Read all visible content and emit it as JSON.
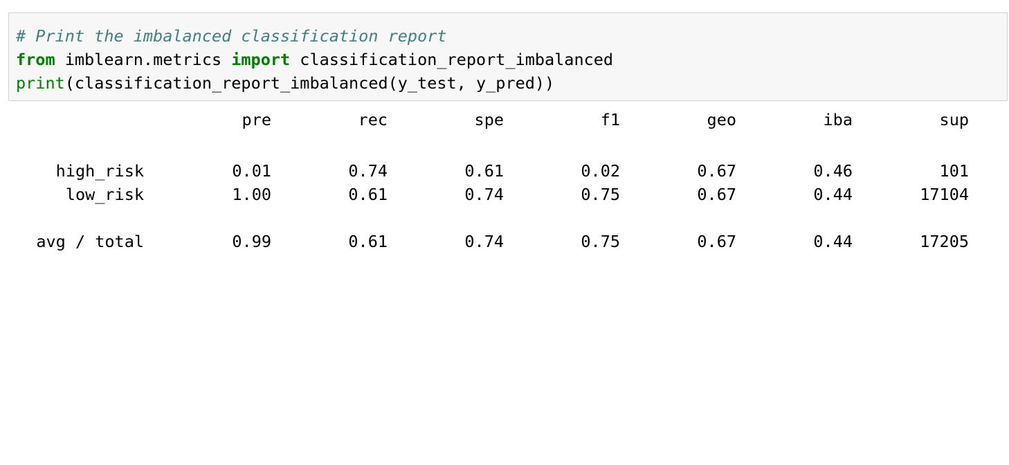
{
  "code": {
    "line1": "# Print the imbalanced classification report",
    "line2_kw_from": "from",
    "line2_module": " imblearn.metrics ",
    "line2_kw_import": "import",
    "line2_name": " classification_report_imbalanced",
    "line3_builtin": "print",
    "line3_rest": "(classification_report_imbalanced(y_test, y_pred))"
  },
  "report": {
    "headers": [
      "pre",
      "rec",
      "spe",
      "f1",
      "geo",
      "iba",
      "sup"
    ],
    "rows": [
      {
        "label": "high_risk",
        "values": [
          "0.01",
          "0.74",
          "0.61",
          "0.02",
          "0.67",
          "0.46",
          "101"
        ]
      },
      {
        "label": "low_risk",
        "values": [
          "1.00",
          "0.61",
          "0.74",
          "0.75",
          "0.67",
          "0.44",
          "17104"
        ]
      }
    ],
    "total": {
      "label": "avg / total",
      "values": [
        "0.99",
        "0.61",
        "0.74",
        "0.75",
        "0.67",
        "0.44",
        "17205"
      ]
    }
  },
  "colors": {
    "comment": "#408080",
    "keyword": "#008000",
    "cell_background": "#f7f7f7",
    "cell_border": "#cfcfcf"
  }
}
